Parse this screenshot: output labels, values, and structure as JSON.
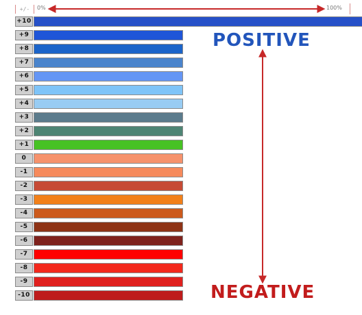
{
  "header": {
    "sign_label": "+/-",
    "min_label": "0%",
    "max_label": "100%"
  },
  "colors": {
    "arrow": "#c62828",
    "positive": "#2255bb",
    "negative": "#c21c1c"
  },
  "labels": {
    "positive": "POSITIVE",
    "negative": "NEGATIVE"
  },
  "scale": {
    "rows": [
      {
        "label": "+10",
        "value": 10,
        "color": "#2650c8",
        "percent": 100
      },
      {
        "label": "+9",
        "value": 9,
        "color": "#1f55d8",
        "percent": 45
      },
      {
        "label": "+8",
        "value": 8,
        "color": "#1b64c9",
        "percent": 45
      },
      {
        "label": "+7",
        "value": 7,
        "color": "#4a84cc",
        "percent": 45
      },
      {
        "label": "+6",
        "value": 6,
        "color": "#6596f5",
        "percent": 45
      },
      {
        "label": "+5",
        "value": 5,
        "color": "#7fc4f8",
        "percent": 45
      },
      {
        "label": "+4",
        "value": 4,
        "color": "#98ccf3",
        "percent": 45
      },
      {
        "label": "+3",
        "value": 3,
        "color": "#5b7b8c",
        "percent": 45
      },
      {
        "label": "+2",
        "value": 2,
        "color": "#4e8574",
        "percent": 45
      },
      {
        "label": "+1",
        "value": 1,
        "color": "#47c224",
        "percent": 45
      },
      {
        "label": "0",
        "value": 0,
        "color": "#f6926c",
        "percent": 45
      },
      {
        "label": "-1",
        "value": -1,
        "color": "#f68a5c",
        "percent": 45
      },
      {
        "label": "-2",
        "value": -2,
        "color": "#c64a35",
        "percent": 45
      },
      {
        "label": "-3",
        "value": -3,
        "color": "#f2801a",
        "percent": 45
      },
      {
        "label": "-4",
        "value": -4,
        "color": "#cc5a1c",
        "percent": 45
      },
      {
        "label": "-5",
        "value": -5,
        "color": "#8e3316",
        "percent": 45
      },
      {
        "label": "-6",
        "value": -6,
        "color": "#7f221d",
        "percent": 45
      },
      {
        "label": "-7",
        "value": -7,
        "color": "#ff0000",
        "percent": 45
      },
      {
        "label": "-8",
        "value": -8,
        "color": "#f3281c",
        "percent": 45
      },
      {
        "label": "-9",
        "value": -9,
        "color": "#e0201e",
        "percent": 45
      },
      {
        "label": "-10",
        "value": -10,
        "color": "#be1c1c",
        "percent": 45
      }
    ]
  }
}
